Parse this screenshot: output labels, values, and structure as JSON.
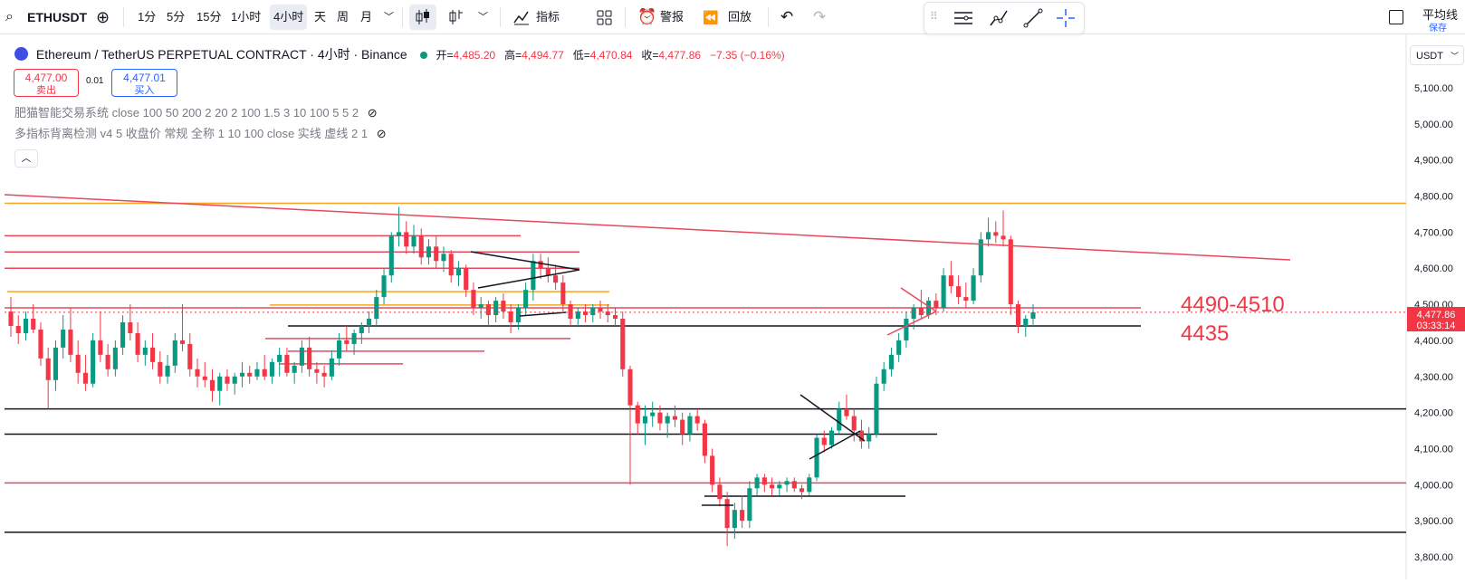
{
  "toolbar": {
    "symbol": "ETHUSDT",
    "intervals": [
      "1分",
      "5分",
      "15分",
      "1小时",
      "4小时",
      "天",
      "周",
      "月"
    ],
    "active_interval": "4小时",
    "indicators_label": "指标",
    "alert_label": "警报",
    "replay_label": "回放",
    "ma_label": "平均线",
    "save_label": "保存"
  },
  "legend": {
    "title": "Ethereum / TetherUS PERPETUAL CONTRACT · 4小时 · Binance",
    "open_label": "开=",
    "open": "4,485.20",
    "high_label": "高=",
    "high": "4,494.77",
    "low_label": "低=",
    "low": "4,470.84",
    "close_label": "收=",
    "close": "4,477.86",
    "change": "−7.35 (−0.16%)"
  },
  "order": {
    "sell_price": "4,477.00",
    "sell_label": "卖出",
    "spread": "0.01",
    "buy_price": "4,477.01",
    "buy_label": "买入"
  },
  "indicators": [
    "肥猫智能交易系统 close 100 50 200 2 20 2 100 1.5 3 10 100 5 5 2",
    "多指标背离检测 v4 5 收盘价 常规 全称 1 10 100 close 实线 虚线 2 1"
  ],
  "price_axis": {
    "currency": "USDT",
    "last_price": "4,477.86",
    "countdown": "03:33:14"
  },
  "chart_data": {
    "type": "candlestick",
    "y_ticks": [
      "5,100.00",
      "5,000.00",
      "4,900.00",
      "4,800.00",
      "4,700.00",
      "4,600.00",
      "4,500.00",
      "4,400.00",
      "4,300.00",
      "4,200.00",
      "4,100.00",
      "4,000.00",
      "3,900.00",
      "3,800.00"
    ],
    "ylim": [
      3780,
      5170
    ],
    "last_price": 4477.86,
    "annotations": [
      "4490-4510",
      "4435"
    ],
    "horizontal_levels": {
      "orange": [
        4780,
        4535,
        4498
      ],
      "red": [
        4690,
        4645,
        4600,
        4490,
        4405,
        4370,
        4335,
        4005
      ],
      "black": [
        4440,
        4210,
        4140,
        3968,
        3868
      ]
    },
    "candles": [
      [
        4480,
        4520,
        4410,
        4440
      ],
      [
        4440,
        4470,
        4390,
        4420
      ],
      [
        4420,
        4480,
        4400,
        4460
      ],
      [
        4460,
        4500,
        4420,
        4430
      ],
      [
        4430,
        4450,
        4330,
        4350
      ],
      [
        4350,
        4380,
        4210,
        4290
      ],
      [
        4290,
        4400,
        4260,
        4380
      ],
      [
        4380,
        4470,
        4350,
        4430
      ],
      [
        4430,
        4490,
        4340,
        4360
      ],
      [
        4360,
        4400,
        4280,
        4310
      ],
      [
        4310,
        4360,
        4260,
        4280
      ],
      [
        4280,
        4420,
        4270,
        4400
      ],
      [
        4400,
        4480,
        4340,
        4360
      ],
      [
        4360,
        4390,
        4300,
        4320
      ],
      [
        4320,
        4400,
        4300,
        4380
      ],
      [
        4380,
        4470,
        4360,
        4450
      ],
      [
        4450,
        4500,
        4400,
        4420
      ],
      [
        4420,
        4450,
        4340,
        4360
      ],
      [
        4360,
        4400,
        4330,
        4380
      ],
      [
        4380,
        4420,
        4320,
        4340
      ],
      [
        4340,
        4370,
        4280,
        4300
      ],
      [
        4300,
        4360,
        4280,
        4330
      ],
      [
        4330,
        4420,
        4310,
        4400
      ],
      [
        4400,
        4500,
        4370,
        4390
      ],
      [
        4390,
        4420,
        4300,
        4320
      ],
      [
        4320,
        4350,
        4270,
        4300
      ],
      [
        4300,
        4340,
        4270,
        4290
      ],
      [
        4290,
        4320,
        4230,
        4260
      ],
      [
        4260,
        4310,
        4220,
        4300
      ],
      [
        4300,
        4320,
        4260,
        4280
      ],
      [
        4280,
        4310,
        4250,
        4300
      ],
      [
        4300,
        4340,
        4270,
        4310
      ],
      [
        4310,
        4330,
        4280,
        4300
      ],
      [
        4300,
        4340,
        4290,
        4320
      ],
      [
        4320,
        4360,
        4290,
        4300
      ],
      [
        4300,
        4350,
        4280,
        4340
      ],
      [
        4340,
        4380,
        4300,
        4360
      ],
      [
        4360,
        4380,
        4300,
        4310
      ],
      [
        4310,
        4340,
        4280,
        4330
      ],
      [
        4330,
        4400,
        4310,
        4380
      ],
      [
        4380,
        4410,
        4300,
        4320
      ],
      [
        4320,
        4340,
        4280,
        4310
      ],
      [
        4310,
        4330,
        4270,
        4300
      ],
      [
        4300,
        4370,
        4290,
        4350
      ],
      [
        4350,
        4420,
        4330,
        4400
      ],
      [
        4400,
        4440,
        4370,
        4390
      ],
      [
        4390,
        4430,
        4360,
        4420
      ],
      [
        4420,
        4450,
        4390,
        4440
      ],
      [
        4440,
        4480,
        4420,
        4460
      ],
      [
        4460,
        4540,
        4440,
        4520
      ],
      [
        4520,
        4600,
        4500,
        4580
      ],
      [
        4580,
        4700,
        4560,
        4690
      ],
      [
        4690,
        4770,
        4660,
        4700
      ],
      [
        4700,
        4730,
        4640,
        4660
      ],
      [
        4660,
        4720,
        4640,
        4690
      ],
      [
        4690,
        4710,
        4610,
        4630
      ],
      [
        4630,
        4680,
        4610,
        4660
      ],
      [
        4660,
        4690,
        4600,
        4620
      ],
      [
        4620,
        4660,
        4590,
        4640
      ],
      [
        4640,
        4650,
        4560,
        4580
      ],
      [
        4580,
        4620,
        4550,
        4600
      ],
      [
        4600,
        4610,
        4520,
        4540
      ],
      [
        4540,
        4560,
        4470,
        4490
      ],
      [
        4490,
        4520,
        4460,
        4500
      ],
      [
        4500,
        4510,
        4440,
        4470
      ],
      [
        4470,
        4520,
        4450,
        4510
      ],
      [
        4510,
        4530,
        4460,
        4480
      ],
      [
        4480,
        4500,
        4420,
        4450
      ],
      [
        4450,
        4500,
        4430,
        4490
      ],
      [
        4490,
        4560,
        4470,
        4540
      ],
      [
        4540,
        4640,
        4510,
        4620
      ],
      [
        4620,
        4640,
        4570,
        4600
      ],
      [
        4600,
        4630,
        4560,
        4580
      ],
      [
        4580,
        4610,
        4540,
        4560
      ],
      [
        4560,
        4580,
        4480,
        4500
      ],
      [
        4500,
        4510,
        4440,
        4460
      ],
      [
        4460,
        4490,
        4440,
        4480
      ],
      [
        4480,
        4500,
        4450,
        4470
      ],
      [
        4470,
        4500,
        4450,
        4490
      ],
      [
        4490,
        4510,
        4460,
        4480
      ],
      [
        4480,
        4500,
        4450,
        4470
      ],
      [
        4470,
        4490,
        4440,
        4460
      ],
      [
        4460,
        4480,
        4300,
        4320
      ],
      [
        4320,
        4330,
        4000,
        4220
      ],
      [
        4220,
        4230,
        4140,
        4170
      ],
      [
        4170,
        4220,
        4110,
        4190
      ],
      [
        4190,
        4230,
        4160,
        4200
      ],
      [
        4200,
        4220,
        4150,
        4170
      ],
      [
        4170,
        4200,
        4130,
        4190
      ],
      [
        4190,
        4220,
        4160,
        4180
      ],
      [
        4180,
        4200,
        4110,
        4140
      ],
      [
        4140,
        4200,
        4120,
        4190
      ],
      [
        4190,
        4210,
        4150,
        4170
      ],
      [
        4170,
        4180,
        4060,
        4080
      ],
      [
        4080,
        4100,
        3980,
        4000
      ],
      [
        4000,
        4020,
        3940,
        3960
      ],
      [
        3960,
        3980,
        3830,
        3880
      ],
      [
        3880,
        3950,
        3850,
        3930
      ],
      [
        3930,
        3970,
        3880,
        3900
      ],
      [
        3900,
        4010,
        3880,
        3990
      ],
      [
        3990,
        4030,
        3970,
        4020
      ],
      [
        4020,
        4030,
        3980,
        4000
      ],
      [
        4000,
        4020,
        3970,
        3990
      ],
      [
        3990,
        4010,
        3970,
        4000
      ],
      [
        4000,
        4020,
        3980,
        4010
      ],
      [
        4010,
        4020,
        3980,
        3990
      ],
      [
        3990,
        4000,
        3960,
        3980
      ],
      [
        3980,
        4030,
        3970,
        4020
      ],
      [
        4020,
        4140,
        4010,
        4130
      ],
      [
        4130,
        4150,
        4090,
        4110
      ],
      [
        4110,
        4160,
        4100,
        4150
      ],
      [
        4150,
        4230,
        4140,
        4210
      ],
      [
        4210,
        4250,
        4180,
        4190
      ],
      [
        4190,
        4210,
        4120,
        4150
      ],
      [
        4150,
        4180,
        4100,
        4120
      ],
      [
        4120,
        4160,
        4100,
        4140
      ],
      [
        4140,
        4300,
        4130,
        4280
      ],
      [
        4280,
        4340,
        4260,
        4320
      ],
      [
        4320,
        4380,
        4300,
        4360
      ],
      [
        4360,
        4420,
        4340,
        4400
      ],
      [
        4400,
        4480,
        4380,
        4460
      ],
      [
        4460,
        4500,
        4430,
        4490
      ],
      [
        4490,
        4540,
        4460,
        4470
      ],
      [
        4470,
        4520,
        4460,
        4510
      ],
      [
        4510,
        4530,
        4470,
        4490
      ],
      [
        4490,
        4600,
        4480,
        4580
      ],
      [
        4580,
        4620,
        4530,
        4550
      ],
      [
        4550,
        4580,
        4500,
        4520
      ],
      [
        4520,
        4560,
        4490,
        4510
      ],
      [
        4510,
        4600,
        4500,
        4580
      ],
      [
        4580,
        4700,
        4560,
        4680
      ],
      [
        4680,
        4740,
        4660,
        4700
      ],
      [
        4700,
        4730,
        4670,
        4690
      ],
      [
        4690,
        4760,
        4660,
        4680
      ],
      [
        4680,
        4690,
        4470,
        4500
      ],
      [
        4500,
        4510,
        4420,
        4440
      ],
      [
        4440,
        4470,
        4410,
        4460
      ],
      [
        4460,
        4500,
        4440,
        4478
      ]
    ]
  }
}
